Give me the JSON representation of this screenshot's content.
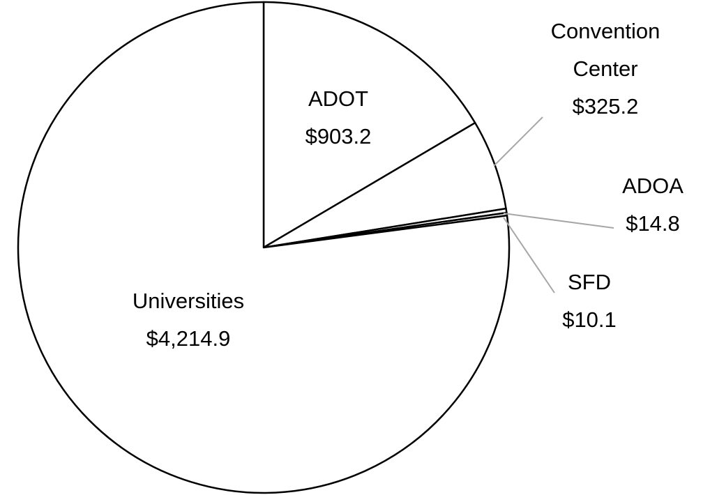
{
  "chart_data": {
    "type": "pie",
    "categories": [
      "ADOT",
      "Convention Center",
      "ADOA",
      "SFD",
      "Universities"
    ],
    "values": [
      903.2,
      325.2,
      14.8,
      10.1,
      4214.9
    ],
    "value_labels": [
      "$903.2",
      "$325.2",
      "$14.8",
      "$10.1",
      "$4,214.9"
    ],
    "color": "#ffffff"
  }
}
